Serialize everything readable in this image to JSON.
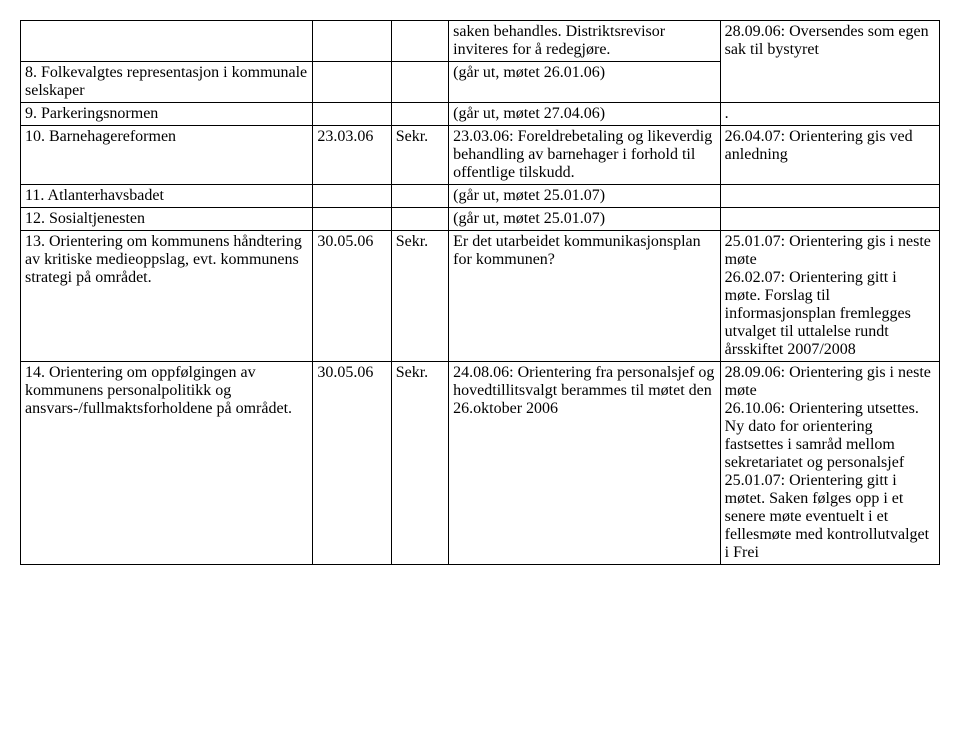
{
  "table": {
    "rows": [
      {
        "c1": "",
        "c2": "",
        "c3": "",
        "c4": "saken behandles. Distriktsrevisor inviteres  for å redegjøre.",
        "c5": "28.09.06: Oversendes som egen sak til bystyret",
        "rowspanCol5": 2
      },
      {
        "c1": "8. Folkevalgtes representasjon i kommunale selskaper",
        "c2": "",
        "c3": "",
        "c4": "(går ut, møtet 26.01.06)",
        "c5": ""
      },
      {
        "c1": "9. Parkeringsnormen",
        "c2": "",
        "c3": "",
        "c4": "(går ut, møtet 27.04.06)",
        "c5": "."
      },
      {
        "c1": "10. Barnehagereformen",
        "c2": "23.03.06",
        "c3": "Sekr.",
        "c4": "23.03.06: Foreldrebetaling og likeverdig behandling av barnehager i forhold til offentlige tilskudd.",
        "c5": "26.04.07: Orientering gis ved anledning"
      },
      {
        "c1": "11. Atlanterhavsbadet",
        "c2": "",
        "c3": "",
        "c4": "(går ut, møtet 25.01.07)",
        "c5": ""
      },
      {
        "c1": "12. Sosialtjenesten",
        "c2": "",
        "c3": "",
        "c4": "(går ut, møtet 25.01.07)",
        "c5": ""
      },
      {
        "c1": "13. Orientering om kommunens håndtering av kritiske medieoppslag, evt. kommunens strategi på området.",
        "c2": "30.05.06",
        "c3": "Sekr.",
        "c4": "Er det utarbeidet kommunikasjonsplan for kommunen?",
        "c5": "25.01.07: Orientering gis i neste møte\n26.02.07: Orientering gitt i møte. Forslag til informasjonsplan fremlegges utvalget til uttalelse rundt årsskiftet 2007/2008"
      },
      {
        "c1": "14. Orientering om oppfølgingen av kommunens personalpolitikk og ansvars-/fullmaktsforholdene på området.",
        "c2": "30.05.06",
        "c3": "Sekr.",
        "c4": "24.08.06: Orientering fra personalsjef og hovedtillitsvalgt berammes til møtet den 26.oktober 2006",
        "c5": "28.09.06: Orientering gis i neste møte\n26.10.06: Orientering utsettes. Ny dato for orientering fastsettes i samråd mellom sekretariatet og personalsjef\n25.01.07: Orientering gitt i møtet. Saken følges opp i et senere møte eventuelt i et fellesmøte med kontrollutvalget i Frei"
      }
    ]
  }
}
